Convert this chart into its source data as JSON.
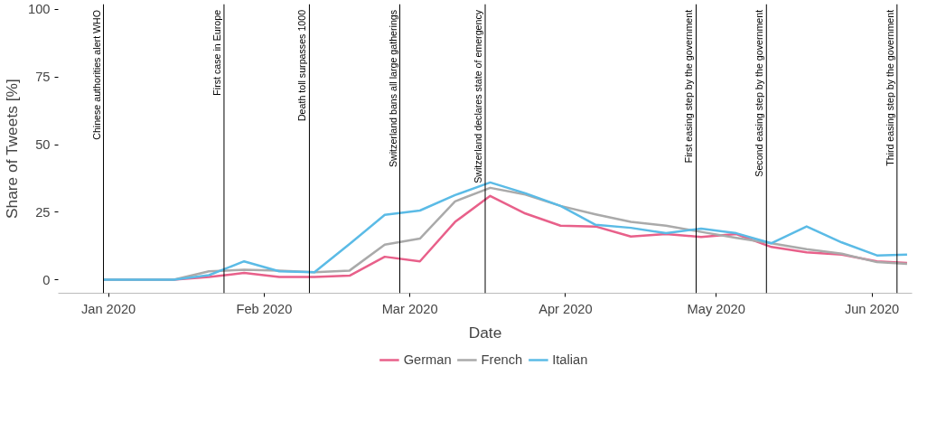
{
  "chart_data": {
    "type": "line",
    "xlabel": "Date",
    "ylabel": "Share of Tweets [%]",
    "x": [
      "2019-12-31",
      "2020-01-07",
      "2020-01-14",
      "2020-01-21",
      "2020-01-28",
      "2020-02-04",
      "2020-02-11",
      "2020-02-18",
      "2020-02-25",
      "2020-03-03",
      "2020-03-10",
      "2020-03-17",
      "2020-03-24",
      "2020-03-31",
      "2020-04-07",
      "2020-04-14",
      "2020-04-21",
      "2020-04-28",
      "2020-05-05",
      "2020-05-12",
      "2020-05-19",
      "2020-05-26",
      "2020-06-02",
      "2020-06-08"
    ],
    "series": [
      {
        "name": "German",
        "color": "#e8608a",
        "values": [
          0,
          0,
          0,
          1,
          2.5,
          1,
          1,
          1.5,
          8.5,
          6.8,
          21.4,
          31,
          24.5,
          20,
          19.7,
          16,
          16.9,
          15.8,
          16.9,
          12.1,
          10.1,
          9.3,
          6.8,
          6.2
        ]
      },
      {
        "name": "French",
        "color": "#aaaaaa",
        "values": [
          0,
          0,
          0,
          3.1,
          3.7,
          3.4,
          2.8,
          3.4,
          13,
          15.2,
          29,
          34,
          31.5,
          27.3,
          24.2,
          21.4,
          20,
          17.7,
          15.5,
          13.5,
          11.3,
          9.6,
          6.5,
          5.9
        ]
      },
      {
        "name": "Italian",
        "color": "#5bbbe6",
        "values": [
          0,
          0,
          0,
          1.7,
          6.8,
          3.1,
          2.8,
          13.2,
          24,
          25.6,
          31.3,
          36,
          32,
          27.3,
          20.3,
          19.2,
          17.2,
          18.9,
          17.2,
          13.5,
          19.7,
          13.8,
          9,
          9.3
        ]
      }
    ],
    "xlim": [
      "2019-12-22",
      "2020-06-09"
    ],
    "ylim": [
      -5,
      102
    ],
    "xticks": [
      {
        "value": "2020-01-01",
        "label": "Jan 2020"
      },
      {
        "value": "2020-02-01",
        "label": "Feb 2020"
      },
      {
        "value": "2020-03-01",
        "label": "Mar 2020"
      },
      {
        "value": "2020-04-01",
        "label": "Apr 2020"
      },
      {
        "value": "2020-05-01",
        "label": "May 2020"
      },
      {
        "value": "2020-06-01",
        "label": "Jun 2020"
      }
    ],
    "yticks": [
      0,
      25,
      50,
      75,
      100
    ],
    "ref_lines": [
      {
        "axis": "x",
        "value": "2019-12-31",
        "label": "Chinese authorities alert WHO",
        "color": "#000000"
      },
      {
        "axis": "x",
        "value": "2020-01-24",
        "label": "First case in Europe",
        "color": "#000000"
      },
      {
        "axis": "x",
        "value": "2020-02-10",
        "label": "Death toll surpasses 1000",
        "color": "#000000"
      },
      {
        "axis": "x",
        "value": "2020-02-28",
        "label": "Switzerland bans all large gatherings",
        "color": "#000000"
      },
      {
        "axis": "x",
        "value": "2020-03-16",
        "label": "Switzerland declares state of emergency",
        "color": "#000000"
      },
      {
        "axis": "x",
        "value": "2020-04-27",
        "label": "First easing step by the government",
        "color": "#000000"
      },
      {
        "axis": "x",
        "value": "2020-05-11",
        "label": "Second easing step by the government",
        "color": "#000000"
      },
      {
        "axis": "x",
        "value": "2020-06-06",
        "label": "Third easing step by the government",
        "color": "#000000"
      }
    ],
    "grid": false,
    "legend": "bottom",
    "marker": "none",
    "line_style": "solid"
  }
}
